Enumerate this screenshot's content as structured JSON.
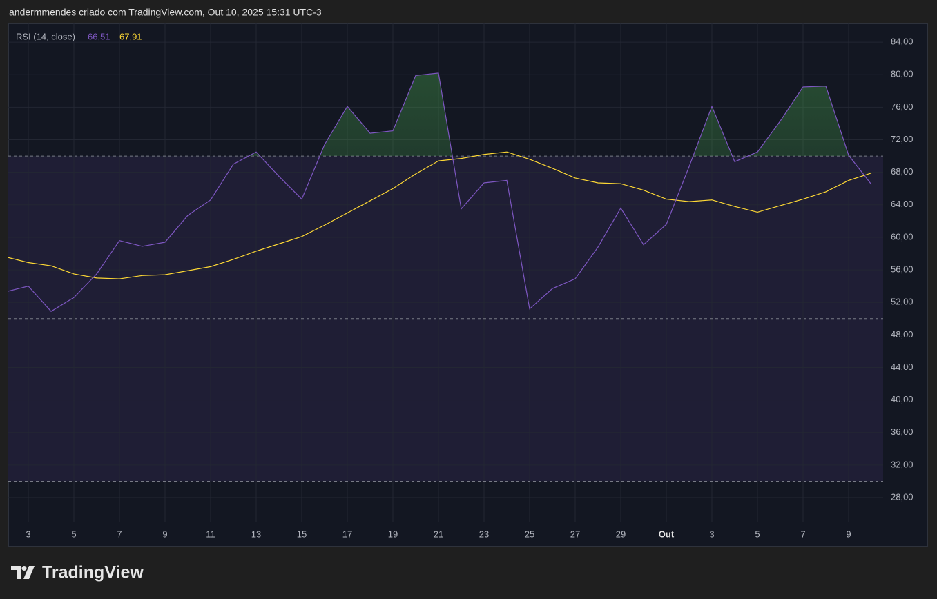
{
  "header": "andermmendes criado com TradingView.com, Out 10, 2025 15:31 UTC-3",
  "logo_text": "TradingView",
  "chart_data": {
    "type": "line",
    "legend_title": "RSI (14, close)",
    "categories": [
      null,
      "3",
      null,
      "5",
      null,
      "7",
      null,
      "9",
      null,
      "11",
      null,
      "13",
      null,
      "15",
      null,
      "17",
      null,
      "19",
      null,
      "21",
      null,
      "23",
      null,
      "25",
      null,
      "27",
      null,
      "29",
      null,
      "Out",
      null,
      "3",
      null,
      "5",
      null,
      "7",
      null,
      "9",
      null
    ],
    "series": [
      {
        "color": "#7e57c2",
        "values": [
          53.3,
          54.0,
          50.9,
          52.6,
          55.5,
          59.6,
          58.9,
          59.4,
          62.7,
          64.6,
          69.0,
          70.5,
          67.5,
          64.7,
          71.4,
          76.1,
          72.8,
          73.1,
          79.9,
          80.2,
          63.5,
          66.7,
          67.0,
          51.2,
          53.7,
          54.9,
          58.8,
          63.6,
          59.1,
          61.6,
          68.7,
          76.1,
          69.3,
          70.5,
          74.3,
          78.5,
          78.6,
          70.1,
          66.51
        ],
        "value_labels": [
          null,
          null,
          null,
          null,
          null,
          null,
          null,
          null,
          null,
          null,
          null,
          null,
          null,
          null,
          null,
          null,
          null,
          null,
          null,
          null,
          null,
          null,
          null,
          null,
          null,
          null,
          null,
          null,
          null,
          null,
          null,
          null,
          null,
          null,
          null,
          null,
          null,
          null,
          "66,51"
        ]
      },
      {
        "color": "#fdd835",
        "values": [
          57.6,
          56.9,
          56.5,
          55.5,
          55.0,
          54.9,
          55.3,
          55.4,
          55.9,
          56.4,
          57.3,
          58.3,
          59.2,
          60.1,
          61.5,
          63.0,
          64.5,
          66.0,
          67.8,
          69.4,
          69.7,
          70.2,
          70.5,
          69.6,
          68.5,
          67.3,
          66.7,
          66.6,
          65.8,
          64.7,
          64.4,
          64.6,
          63.8,
          63.1,
          63.9,
          64.7,
          65.6,
          67.0,
          67.91
        ],
        "value_labels": [
          null,
          null,
          null,
          null,
          null,
          null,
          null,
          null,
          null,
          null,
          null,
          null,
          null,
          null,
          null,
          null,
          null,
          null,
          null,
          null,
          null,
          null,
          null,
          null,
          null,
          null,
          null,
          null,
          null,
          null,
          null,
          null,
          null,
          null,
          null,
          null,
          null,
          null,
          "67,91"
        ]
      }
    ],
    "bands": [
      70,
      50,
      30
    ],
    "band_fill": "#1f1e35",
    "overbought_fill": "#4caf50",
    "ylim": [
      24.95,
      86.3
    ],
    "yticks": [
      {
        "value": 28,
        "label": "28,00"
      },
      {
        "value": 32,
        "label": "32,00"
      },
      {
        "value": 36,
        "label": "36,00"
      },
      {
        "value": 40,
        "label": "40,00"
      },
      {
        "value": 44,
        "label": "44,00"
      },
      {
        "value": 48,
        "label": "48,00"
      },
      {
        "value": 52,
        "label": "52,00"
      },
      {
        "value": 56,
        "label": "56,00"
      },
      {
        "value": 60,
        "label": "60,00"
      },
      {
        "value": 64,
        "label": "64,00"
      },
      {
        "value": 68,
        "label": "68,00"
      },
      {
        "value": 72,
        "label": "72,00"
      },
      {
        "value": 76,
        "label": "76,00"
      },
      {
        "value": 80,
        "label": "80,00"
      },
      {
        "value": 84,
        "label": "84,00"
      }
    ],
    "grid": true
  }
}
